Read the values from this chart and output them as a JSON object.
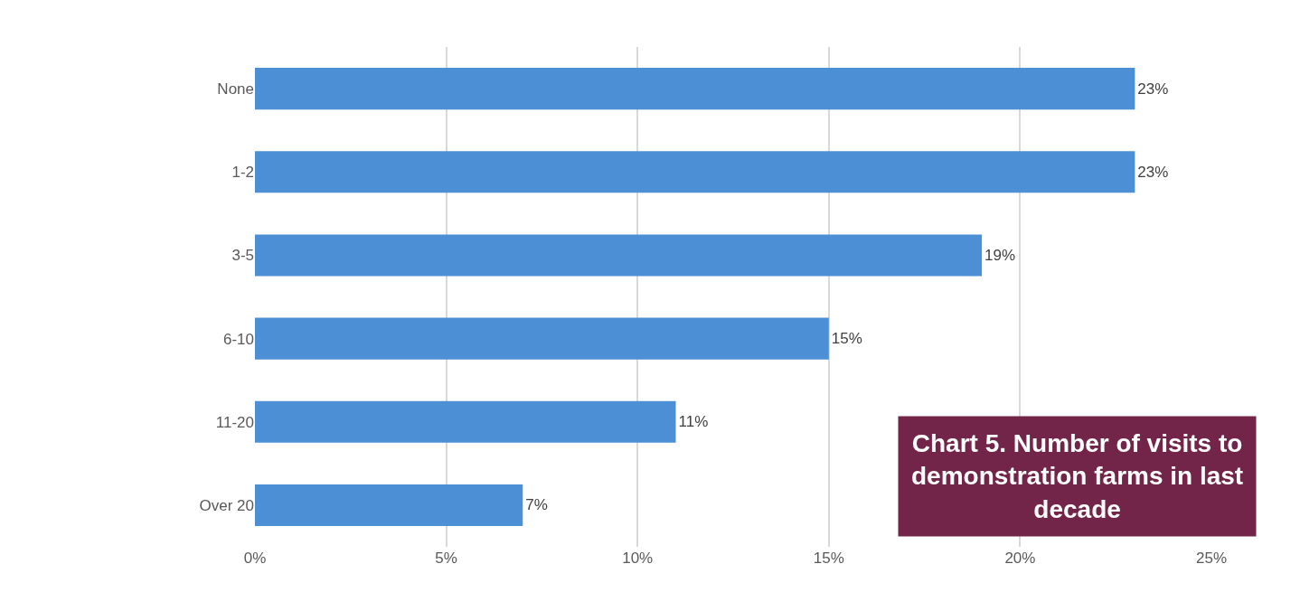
{
  "chart_data": {
    "type": "bar",
    "orientation": "horizontal",
    "title": "Chart 5. Number of visits to demonstration farms in last decade",
    "categories": [
      "None",
      "1-2",
      "3-5",
      "6-10",
      "11-20",
      "Over 20"
    ],
    "values": [
      23,
      23,
      19,
      15,
      11,
      7
    ],
    "value_labels": [
      "23%",
      "23%",
      "19%",
      "15%",
      "11%",
      "7%"
    ],
    "color": "#4d8fd4",
    "xlim": [
      0,
      25
    ],
    "xticks": [
      {
        "value": 0,
        "label": "0%"
      },
      {
        "value": 5,
        "label": "5%"
      },
      {
        "value": 10,
        "label": "10%"
      },
      {
        "value": 15,
        "label": "15%"
      },
      {
        "value": 20,
        "label": "20%"
      },
      {
        "value": 25,
        "label": "25%"
      }
    ],
    "grid": "x",
    "legend": false
  }
}
